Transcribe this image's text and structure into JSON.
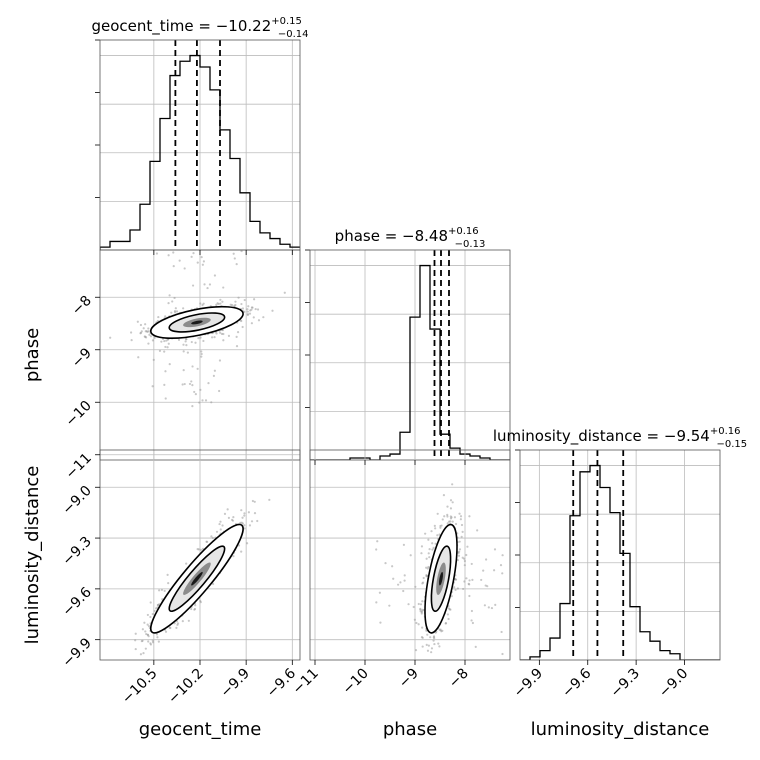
{
  "chart_data": {
    "type": "corner",
    "parameters": [
      "geocent_time",
      "phase",
      "luminosity_distance"
    ],
    "axis_labels": [
      "geocent_time",
      "phase",
      "luminosity_distance"
    ],
    "ranges": [
      [
        -10.85,
        -9.55
      ],
      [
        -11.1,
        -7.1
      ],
      [
        -10.02,
        -8.78
      ]
    ],
    "ticks": [
      {
        "values": [
          -10.5,
          -10.2,
          -9.9,
          -9.6
        ],
        "labels": [
          "−10.5",
          "−10.2",
          "−9.9",
          "−9.6"
        ]
      },
      {
        "values": [
          -11,
          -10,
          -9,
          -8
        ],
        "labels": [
          "−11",
          "−10",
          "−9",
          "−8"
        ]
      },
      {
        "values": [
          -9.9,
          -9.6,
          -9.3,
          -9.0
        ],
        "labels": [
          "−9.9",
          "−9.6",
          "−9.3",
          "−9.0"
        ]
      }
    ],
    "titles": [
      {
        "main": "geocent_time = −10.22",
        "sup": "+0.15",
        "sub": "−0.14"
      },
      {
        "main": "phase = −8.48",
        "sup": "+0.16",
        "sub": "−0.13"
      },
      {
        "main": "luminosity_distance = −9.54",
        "sup": "+0.16",
        "sub": "−0.15"
      }
    ],
    "quantiles": [
      [
        -10.36,
        -10.22,
        -10.07
      ],
      [
        -8.61,
        -8.48,
        -8.32
      ],
      [
        -9.69,
        -9.54,
        -9.38
      ]
    ],
    "histograms": [
      {
        "edges_start": -10.85,
        "bin_width": 0.065,
        "counts": [
          1,
          3,
          3,
          7,
          16,
          31,
          46,
          61,
          66,
          68,
          64,
          56,
          42,
          32,
          20,
          10,
          6,
          4,
          2,
          1
        ]
      },
      {
        "edges_start": -11.1,
        "bin_width": 0.2,
        "counts": [
          0,
          0,
          0,
          0,
          1,
          1,
          0,
          2,
          3,
          14,
          72,
          98,
          66,
          13,
          6,
          3,
          2,
          1,
          0,
          0
        ]
      },
      {
        "edges_start": -10.02,
        "bin_width": 0.062,
        "counts": [
          0,
          1,
          3,
          7,
          18,
          46,
          60,
          62,
          55,
          47,
          34,
          17,
          9,
          6,
          3,
          2,
          0,
          0,
          0,
          0
        ]
      }
    ],
    "density": [
      {
        "x": "geocent_time",
        "y": "phase",
        "center": [
          -10.22,
          -8.48
        ],
        "sd": [
          0.15,
          0.15
        ],
        "corr": 0.55
      },
      {
        "x": "geocent_time",
        "y": "luminosity_distance",
        "center": [
          -10.22,
          -9.54
        ],
        "sd": [
          0.15,
          0.16
        ],
        "corr": 0.92
      },
      {
        "x": "phase",
        "y": "luminosity_distance",
        "center": [
          -8.48,
          -9.54
        ],
        "sd": [
          0.16,
          0.16
        ],
        "corr": 0.6
      }
    ],
    "grid": true
  }
}
